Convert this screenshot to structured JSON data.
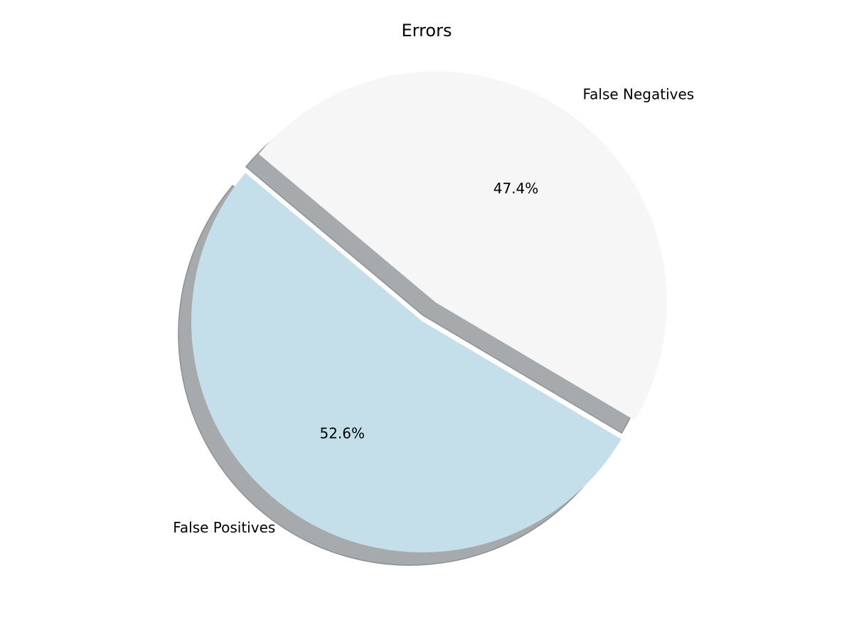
{
  "chart_data": {
    "type": "pie",
    "title": "Errors",
    "slices": [
      {
        "label": "False Positives",
        "value": 52.6,
        "pct_label": "52.6%",
        "color": "#c5dfea",
        "exploded": false
      },
      {
        "label": "False Negatives",
        "value": 47.4,
        "pct_label": "47.4%",
        "color": "#f6f6f6",
        "exploded": true
      }
    ],
    "shadow": true,
    "shadow_color": "#a6aaad",
    "start_angle_deg": 140
  }
}
